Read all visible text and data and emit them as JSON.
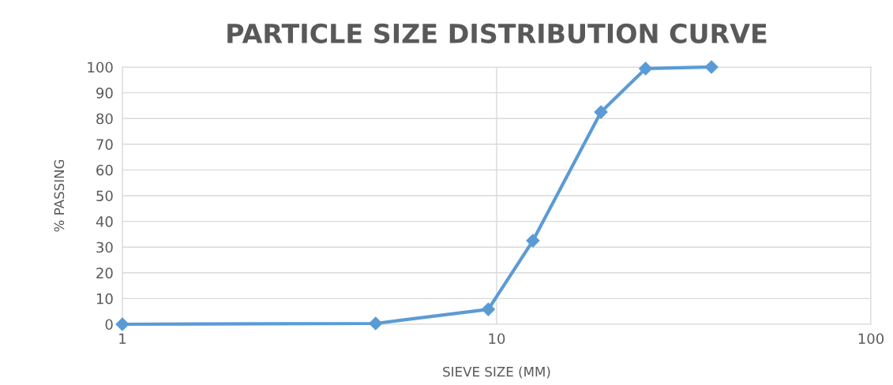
{
  "chart_data": {
    "type": "line",
    "title": "PARTICLE SIZE DISTRIBUTION CURVE",
    "xlabel": "SIEVE SIZE (MM)",
    "ylabel": "% PASSING",
    "log": "x",
    "xlim": [
      1,
      100
    ],
    "xticks": [
      1,
      10,
      100
    ],
    "ylim": [
      0,
      100
    ],
    "yticks": [
      0,
      10,
      20,
      30,
      40,
      50,
      60,
      70,
      80,
      90,
      100
    ],
    "grid": true,
    "marker": "diamond",
    "line_style": "solid",
    "series": [
      {
        "color": "#5b9bd5",
        "x": [
          1,
          4.75,
          9.5,
          12.5,
          19,
          25,
          37.5
        ],
        "values": [
          0,
          0.3,
          5.8,
          32.5,
          82.5,
          99.4,
          100
        ]
      }
    ]
  }
}
